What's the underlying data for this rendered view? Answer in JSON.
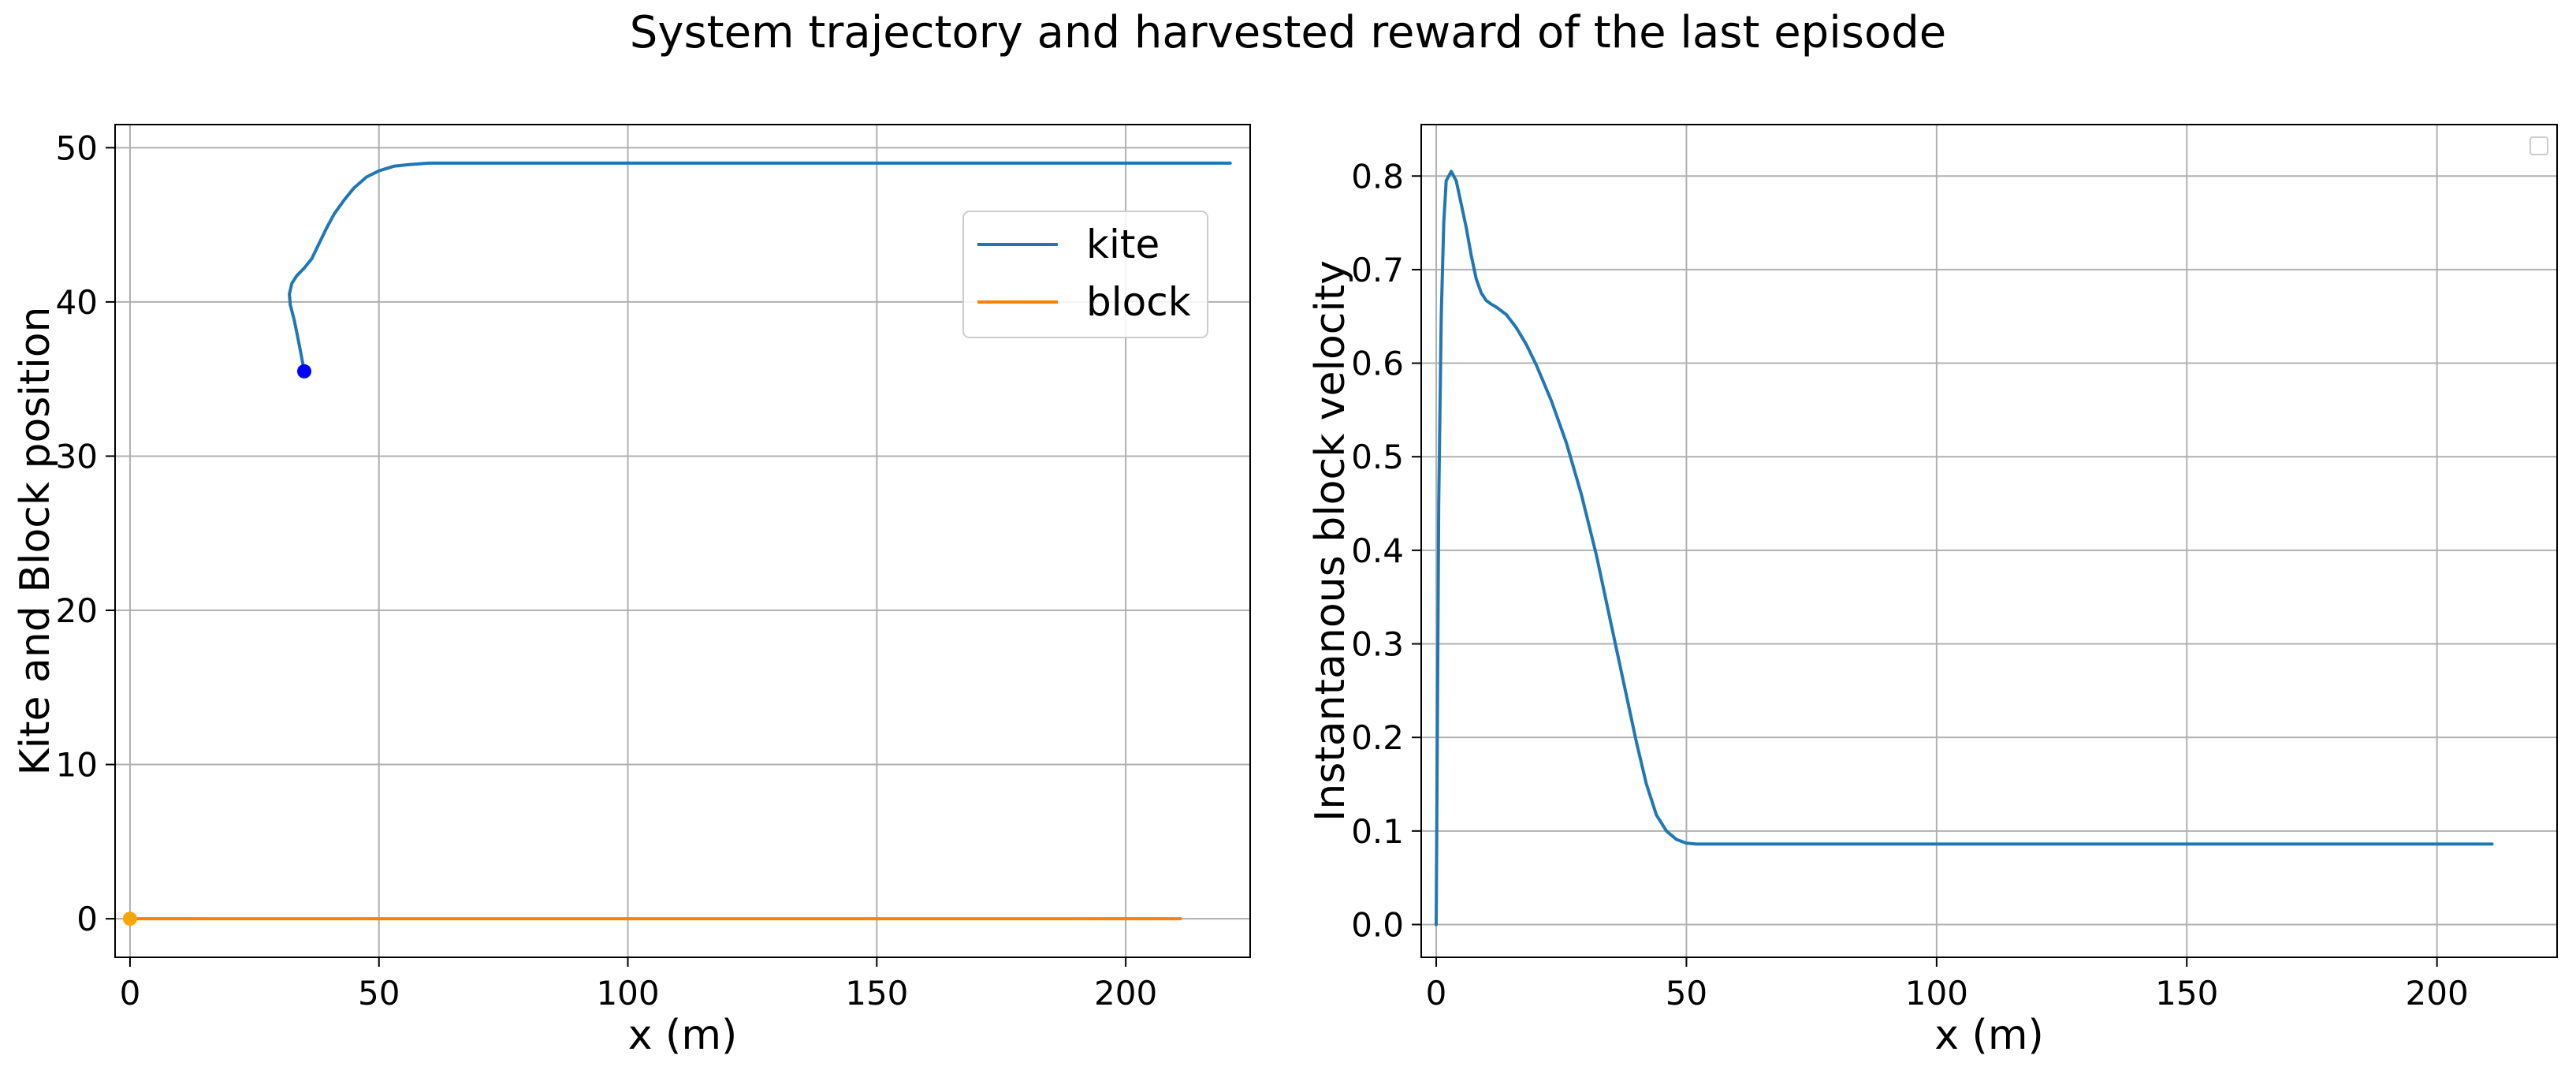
{
  "figure": {
    "title": "System trajectory and harvested reward of the last episode"
  },
  "chart_data": [
    {
      "type": "line",
      "name": "trajectory",
      "xlabel": "x (m)",
      "ylabel": "Kite and Block position",
      "xlim": [
        -3,
        225
      ],
      "ylim": [
        -2.5,
        51.5
      ],
      "xticks": [
        0,
        50,
        100,
        150,
        200
      ],
      "yticks": [
        0,
        10,
        20,
        30,
        40,
        50
      ],
      "grid": true,
      "legend": "upper right",
      "series": [
        {
          "name": "kite",
          "color": "#1f77b4",
          "x": [
            35,
            34,
            33,
            32.2,
            32,
            32.5,
            33.5,
            35,
            36.5,
            38,
            39.5,
            41,
            43,
            45,
            47.5,
            50,
            53,
            56,
            60,
            70,
            100,
            150,
            200,
            221
          ],
          "y": [
            35.5,
            37.2,
            38.8,
            39.8,
            40.5,
            41.2,
            41.7,
            42.2,
            42.8,
            43.8,
            44.8,
            45.7,
            46.6,
            47.4,
            48.1,
            48.5,
            48.8,
            48.9,
            49.0,
            49.0,
            49.0,
            49.0,
            49.0,
            49.0
          ],
          "marker": {
            "x": 35,
            "y": 35.5,
            "color": "#0000ff"
          }
        },
        {
          "name": "block",
          "color": "#ff7f0e",
          "x": [
            0,
            50,
            100,
            150,
            211
          ],
          "y": [
            0,
            0,
            0,
            0,
            0
          ],
          "marker": {
            "x": 0,
            "y": 0,
            "color": "#ffa500"
          }
        }
      ]
    },
    {
      "type": "line",
      "name": "velocity",
      "xlabel": "x (m)",
      "ylabel": "Instantanous block velocity",
      "xlim": [
        -3,
        224
      ],
      "ylim": [
        -0.035,
        0.855
      ],
      "xticks": [
        0,
        50,
        100,
        150,
        200
      ],
      "yticks": [
        0.0,
        0.1,
        0.2,
        0.3,
        0.4,
        0.5,
        0.6,
        0.7,
        0.8
      ],
      "grid": true,
      "series": [
        {
          "color": "#1f77b4",
          "x": [
            0,
            0.5,
            1,
            1.5,
            2,
            3,
            4,
            5,
            6,
            7,
            8,
            9,
            10,
            11,
            12,
            14,
            16,
            18,
            20,
            23,
            26,
            29,
            32,
            35,
            38,
            40,
            42,
            44,
            46,
            48,
            50,
            52,
            55,
            60,
            100,
            150,
            200,
            211
          ],
          "y": [
            0.0,
            0.45,
            0.65,
            0.75,
            0.795,
            0.805,
            0.795,
            0.77,
            0.745,
            0.715,
            0.69,
            0.675,
            0.667,
            0.663,
            0.66,
            0.652,
            0.638,
            0.62,
            0.598,
            0.56,
            0.515,
            0.46,
            0.395,
            0.32,
            0.245,
            0.195,
            0.15,
            0.117,
            0.1,
            0.091,
            0.087,
            0.086,
            0.086,
            0.086,
            0.086,
            0.086,
            0.086,
            0.086
          ]
        }
      ]
    }
  ]
}
